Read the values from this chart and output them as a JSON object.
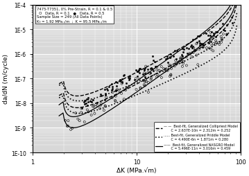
{
  "title_text": "7475-T7351, 0% Pre-Strain, R = 0.1 & 0.5",
  "xlabel": "ΔK (MPa.√m)",
  "ylabel": "da/dN (m/cycle)",
  "xlim": [
    1,
    100
  ],
  "ylim": [
    1e-10,
    0.0001
  ],
  "bg_color": "#d8d8d8",
  "collipriest_C": 2.637e-10,
  "collipriest_n": 2.312,
  "collipriest_m": 0.252,
  "priddle_C": 4.49e-06,
  "priddle_n": 1.871,
  "priddle_m": 0.28,
  "nasgro_C": 5.496e-11,
  "nasgro_n": 3.016,
  "nasgro_m": 0.459,
  "K0": 1.92,
  "Kc": 95.5,
  "yticks": [
    1e-10,
    1e-09,
    1e-08,
    1e-07,
    1e-06,
    1e-05,
    0.0001
  ],
  "ytick_labels": [
    "1E-10",
    "1E-9",
    "1E-8",
    "1E-7",
    "1E-6",
    "1E-5",
    "1E-4"
  ],
  "xticks": [
    1,
    10,
    100
  ],
  "xtick_labels": [
    "1",
    "10",
    "100"
  ],
  "info_line1": "7475-T7351, 0% Pre-Strain, R = 0.1 & 0.5",
  "info_line2": "  O   Data, R = 0.1   ●   Data, R = 0.5",
  "info_line3": "Sample Size = 249 (All Data Points)",
  "info_line4": "K₀ = 1.92 MPa.√m  ;  K⁣ = 95.5 MPa.√m",
  "leg1_label1": "Best-fit, Generalized Collipriest Model",
  "leg1_label2": "C = 2.637E-10n = 2.312m = 0.252",
  "leg2_label1": "Best-fit, Generalized Priddle Model",
  "leg2_label2": "C = 4.490E-6n = 1.871m = 0.280",
  "leg3_label1": "Best-fit, Generalized NASGRO Model",
  "leg3_label2": "C = 5.496E-11n = 3.016m = 0.459"
}
